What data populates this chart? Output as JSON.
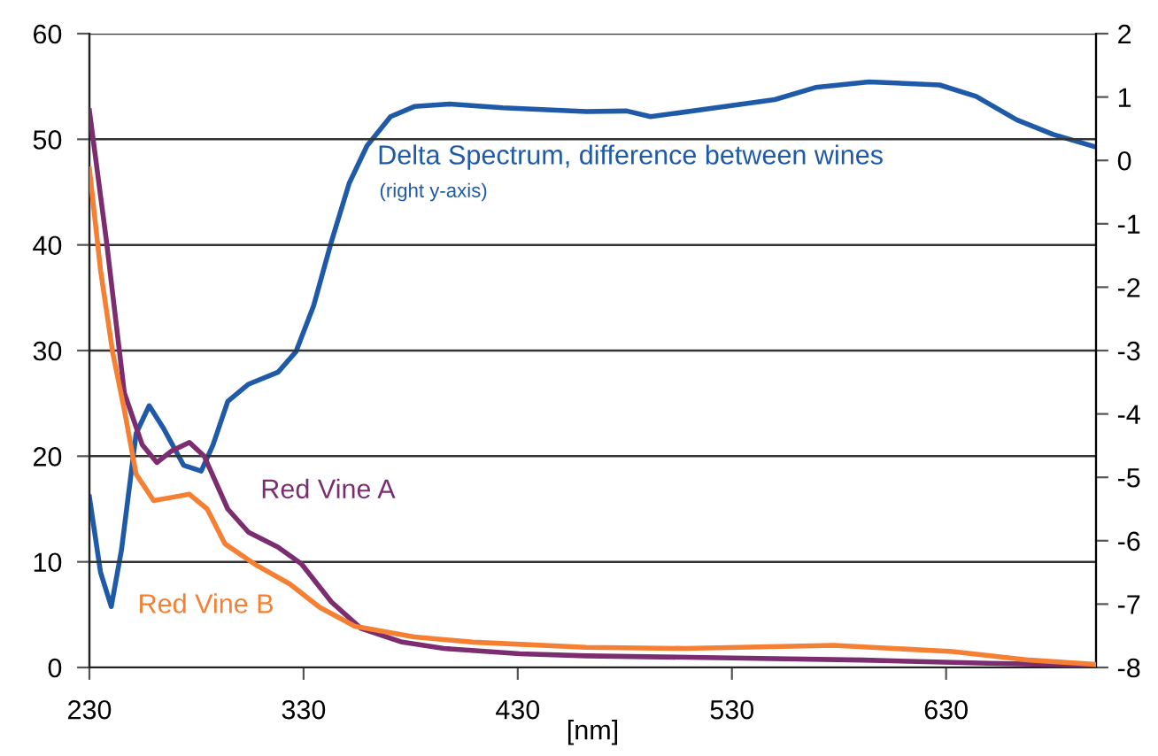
{
  "chart_data": {
    "type": "line",
    "xlabel": "[nm]",
    "xlim": [
      230,
      700
    ],
    "xticks": [
      230,
      330,
      430,
      530,
      630
    ],
    "ylim": [
      0,
      60
    ],
    "yticks": [
      0,
      10,
      20,
      30,
      40,
      50,
      60
    ],
    "y2lim": [
      -8,
      2
    ],
    "y2ticks": [
      -8,
      -7,
      -6,
      -5,
      -4,
      -3,
      -2,
      -1,
      0,
      1,
      2
    ],
    "grid": "y",
    "legend": false,
    "marker": "none",
    "line_style": "solid",
    "annotations": [
      "(right y-axis)"
    ],
    "series": [
      {
        "name": "Red Vine A",
        "color": "#7b2d6f",
        "x": [
          230,
          238,
          246.3,
          254.6,
          261.5,
          268.4,
          276.7,
          283.6,
          294.6,
          304.3,
          318,
          329,
          343,
          356.8,
          376,
          395.5,
          431,
          462,
          530,
          591,
          650,
          700
        ],
        "values": [
          52.7,
          40.3,
          26,
          21.1,
          19.4,
          20.5,
          21.3,
          20.0,
          15.0,
          12.8,
          11.4,
          9.8,
          6.2,
          3.7,
          2.4,
          1.8,
          1.3,
          1.1,
          0.9,
          0.7,
          0.4,
          0.2
        ]
      },
      {
        "name": "Red Vine B",
        "color": "#f57f32",
        "x": [
          230,
          235.2,
          240.8,
          246.3,
          251.8,
          260,
          268.4,
          276.7,
          285,
          293.3,
          307,
          323.6,
          337.5,
          354,
          381.7,
          409,
          462,
          508.5,
          577.6,
          633,
          669,
          700
        ],
        "values": [
          47.2,
          37.6,
          29.9,
          24.4,
          18.3,
          15.8,
          16.1,
          16.4,
          15.0,
          11.7,
          9.8,
          7.9,
          5.7,
          3.9,
          2.9,
          2.4,
          1.9,
          1.8,
          2.1,
          1.5,
          0.7,
          0.3
        ]
      },
      {
        "name": "Delta Spectrum, difference between wines",
        "color": "#1f5aa8",
        "axis": "y2",
        "x": [
          230,
          235.2,
          240.2,
          245,
          251.8,
          257.9,
          264.3,
          274,
          282.2,
          287.7,
          294.6,
          304.3,
          318.1,
          326.4,
          334.7,
          343,
          351.3,
          359.6,
          370.6,
          381.7,
          398.2,
          423,
          462,
          480.9,
          492,
          522.3,
          550,
          569,
          594,
          627,
          644,
          663,
          680,
          700
        ],
        "values": [
          -5.31,
          -6.5,
          -7.04,
          -6.14,
          -4.31,
          -3.87,
          -4.21,
          -4.81,
          -4.9,
          -4.49,
          -3.8,
          -3.53,
          -3.34,
          -3.02,
          -2.29,
          -1.28,
          -0.36,
          0.23,
          0.69,
          0.85,
          0.89,
          0.83,
          0.77,
          0.78,
          0.69,
          0.83,
          0.96,
          1.15,
          1.24,
          1.19,
          1.01,
          0.64,
          0.41,
          0.21
        ]
      }
    ]
  }
}
